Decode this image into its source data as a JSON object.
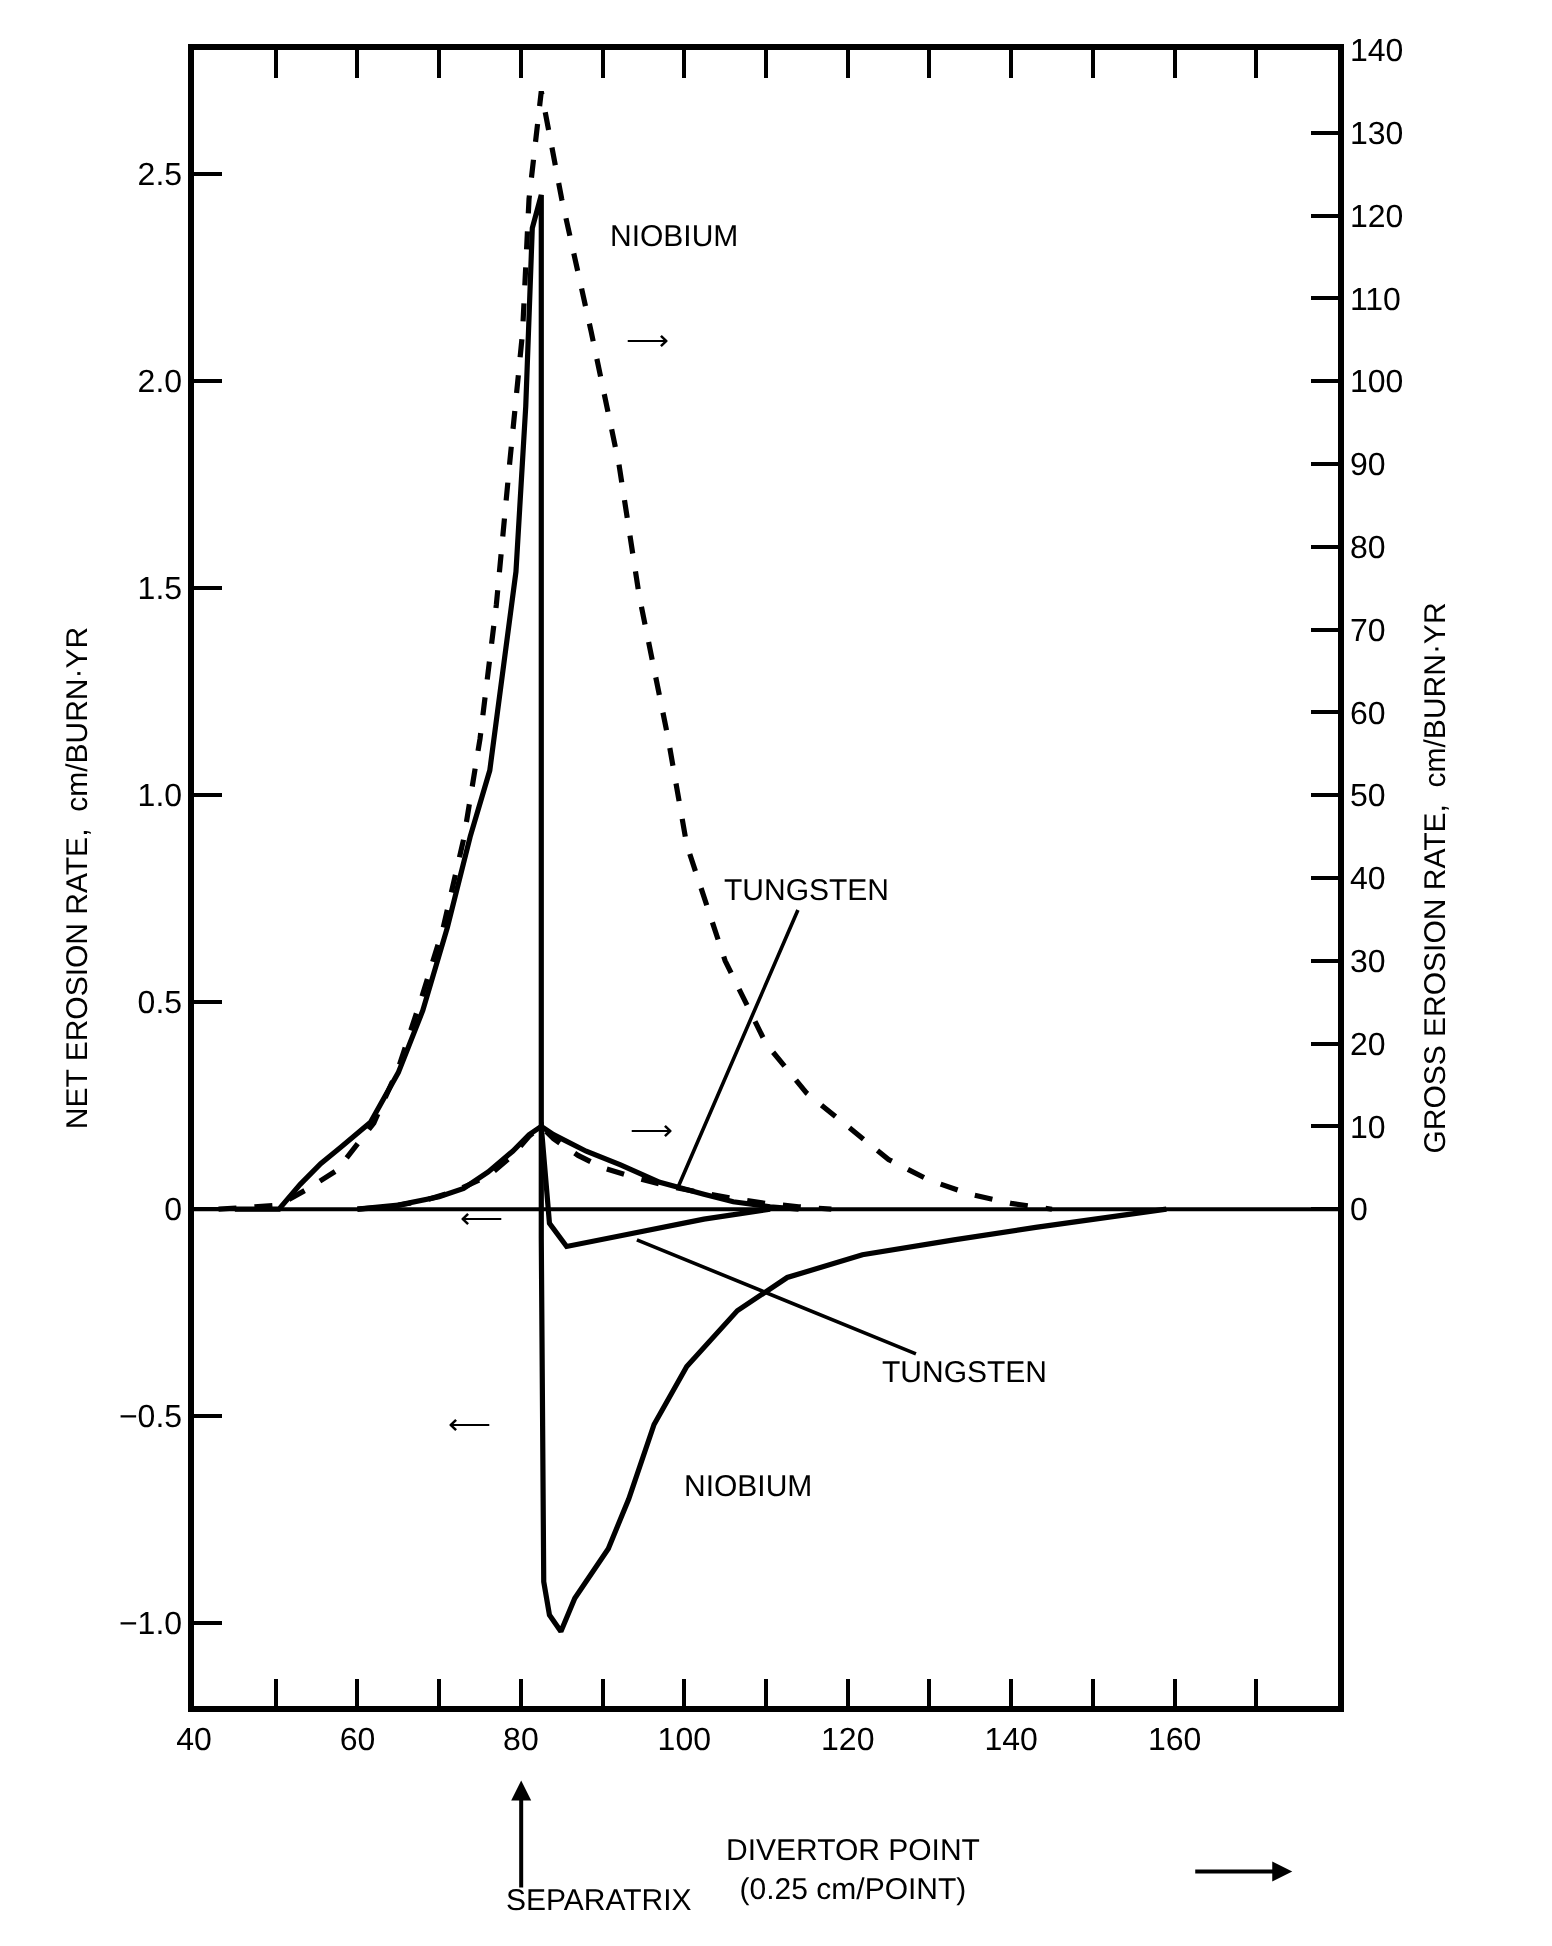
{
  "chart_data": {
    "type": "line",
    "xlabel": "DIVERTOR POINT\n(0.25 cm/POINT)",
    "ylabel": "NET EROSION RATE,  cm/BURN·YR",
    "y2label": "GROSS EROSION RATE,  cm/BURN·YR",
    "xlim": [
      40,
      180
    ],
    "xticks": [
      40,
      {
        "value": 50,
        "label": null
      },
      60,
      {
        "value": 70,
        "label": null
      },
      80,
      {
        "value": 90,
        "label": null
      },
      100,
      {
        "value": 110,
        "label": null
      },
      120,
      {
        "value": 130,
        "label": null
      },
      140,
      {
        "value": 150,
        "label": null
      },
      160,
      {
        "value": 170,
        "label": null
      },
      {
        "value": 180,
        "label": null
      }
    ],
    "ylim": [
      -1.2,
      2.8
    ],
    "yticks": [
      {
        "value": -1,
        "label": "−1.0"
      },
      {
        "value": -0.5,
        "label": "−0.5"
      },
      0,
      0.5,
      {
        "value": 1,
        "label": "1.0"
      },
      1.5,
      {
        "value": 2,
        "label": "2.0"
      },
      2.5
    ],
    "y2lim": [
      -60,
      140
    ],
    "y2ticks": [
      0,
      10,
      20,
      30,
      40,
      50,
      60,
      70,
      80,
      90,
      100,
      110,
      120,
      130,
      140
    ],
    "marker": "none",
    "series": [
      {
        "color": "#000000",
        "axis": "y2",
        "line_style": "dashed",
        "x": [
          43,
          50.4,
          54,
          57.5,
          62,
          65,
          68,
          70.5,
          73,
          75,
          77,
          78.6,
          80.2,
          81,
          82.5,
          85,
          88.6,
          92,
          94.5,
          98,
          100.3,
          105,
          110,
          115,
          120,
          125,
          130,
          135,
          140,
          145
        ],
        "values": [
          0,
          0.5,
          2.5,
          4.7,
          10.4,
          17,
          26,
          34,
          44.7,
          56.8,
          73,
          89.8,
          105.8,
          122,
          135,
          122,
          106,
          90,
          74,
          57,
          44,
          30,
          20,
          14,
          10,
          6,
          3.5,
          1.8,
          0.7,
          0
        ]
      },
      {
        "color": "#000000",
        "axis": "y2",
        "line_style": "dashed",
        "x": [
          60,
          64,
          68,
          72,
          76,
          79,
          81,
          82.5,
          84,
          87,
          90,
          94,
          98,
          102,
          106,
          110,
          114,
          118
        ],
        "values": [
          0,
          0.3,
          1,
          2.2,
          4,
          6.5,
          8.8,
          10,
          8.5,
          6.5,
          5,
          3.8,
          2.8,
          2,
          1.3,
          0.7,
          0.3,
          0
        ]
      },
      {
        "color": "#000000",
        "line_style": "solid",
        "x": [
          45,
          50.4,
          53,
          55.5,
          58,
          61.6,
          65,
          68,
          71,
          73.8,
          76.2,
          79.4,
          80.6,
          81.4,
          82.5,
          82.5,
          82.8,
          83.5,
          84.9,
          86.6,
          90.7,
          93.2,
          96.3,
          100.3,
          106.5,
          112.6,
          121.8,
          133,
          143,
          159
        ],
        "values": [
          0,
          0,
          0.06,
          0.11,
          0.15,
          0.21,
          0.33,
          0.48,
          0.68,
          0.9,
          1.06,
          1.54,
          1.94,
          2.37,
          2.45,
          -0.07,
          -0.9,
          -0.98,
          -1.02,
          -0.94,
          -0.82,
          -0.7,
          -0.52,
          -0.38,
          -0.245,
          -0.165,
          -0.11,
          -0.074,
          -0.044,
          0
        ]
      },
      {
        "color": "#000000",
        "line_style": "solid",
        "x": [
          60,
          65,
          70,
          73,
          76,
          79,
          81,
          82.5,
          83.5,
          85.6,
          92.2,
          102.4,
          110.5
        ],
        "values": [
          0,
          0.01,
          0.03,
          0.05,
          0.09,
          0.14,
          0.18,
          0.2,
          -0.034,
          -0.09,
          -0.064,
          -0.024,
          0
        ]
      },
      {
        "color": "#000000",
        "line_style": "solid",
        "x": [
          82.5,
          84,
          88,
          92.2,
          97,
          102.4,
          106,
          110.5,
          114
        ],
        "values": [
          0.2,
          0.18,
          0.14,
          0.107,
          0.065,
          0.036,
          0.018,
          0.006,
          0
        ]
      }
    ],
    "ref_lines": [
      {
        "axis": "y",
        "value": 0,
        "color": "#000000",
        "line_style": "solid"
      }
    ],
    "annotations": [
      "NIOBIUM",
      "⟶",
      {
        "text": "TUNGSTEN",
        "x": 99.3,
        "y": 0.056
      },
      "⟶",
      "⟵",
      "⟵",
      {
        "text": "TUNGSTEN",
        "x": 94.2,
        "y": -0.074
      },
      "NIOBIUM",
      "SEPARATRIX"
    ]
  }
}
